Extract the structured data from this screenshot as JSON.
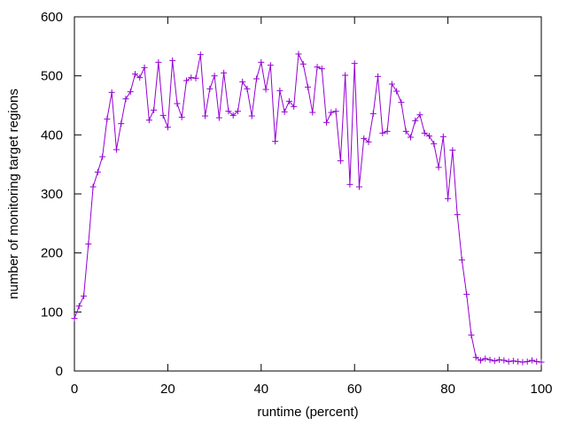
{
  "chart_data": {
    "type": "line",
    "title": "",
    "xlabel": "runtime (percent)",
    "ylabel": "number of monitoring target regions",
    "xlim": [
      0,
      100
    ],
    "ylim": [
      0,
      600
    ],
    "xticks": [
      0,
      20,
      40,
      60,
      80,
      100
    ],
    "yticks": [
      0,
      100,
      200,
      300,
      400,
      500,
      600
    ],
    "grid": false,
    "legend": "none",
    "marker": "plus",
    "color": "#9400d3",
    "series": [
      {
        "x": [
          0,
          1,
          2,
          3,
          4,
          5,
          6,
          7,
          8,
          9,
          10,
          11,
          12,
          13,
          14,
          15,
          16,
          17,
          18,
          19,
          20,
          21,
          22,
          23,
          24,
          25,
          26,
          27,
          28,
          29,
          30,
          31,
          32,
          33,
          34,
          35,
          36,
          37,
          38,
          39,
          40,
          41,
          42,
          43,
          44,
          45,
          46,
          47,
          48,
          49,
          50,
          51,
          52,
          53,
          54,
          55,
          56,
          57,
          58,
          59,
          60,
          61,
          62,
          63,
          64,
          65,
          66,
          67,
          68,
          69,
          70,
          71,
          72,
          73,
          74,
          75,
          76,
          77,
          78,
          79,
          80,
          81,
          82,
          83,
          84,
          85,
          86,
          87,
          88,
          89,
          90,
          91,
          92,
          93,
          94,
          95,
          96,
          97,
          98,
          99,
          100
        ],
        "values": [
          89,
          110,
          127,
          215,
          312,
          337,
          363,
          427,
          472,
          375,
          419,
          461,
          473,
          503,
          497,
          514,
          425,
          442,
          523,
          433,
          413,
          526,
          453,
          430,
          492,
          497,
          496,
          536,
          432,
          478,
          500,
          429,
          505,
          440,
          433,
          440,
          490,
          478,
          432,
          495,
          523,
          477,
          518,
          389,
          475,
          439,
          457,
          448,
          537,
          520,
          481,
          438,
          515,
          512,
          421,
          438,
          440,
          356,
          501,
          316,
          521,
          312,
          394,
          388,
          436,
          499,
          403,
          406,
          486,
          474,
          455,
          406,
          396,
          424,
          434,
          403,
          398,
          385,
          345,
          397,
          292,
          374,
          265,
          188,
          130,
          61,
          23,
          18,
          21,
          19,
          17,
          19,
          18,
          16,
          17,
          16,
          15,
          16,
          18,
          16,
          15
        ]
      }
    ]
  }
}
